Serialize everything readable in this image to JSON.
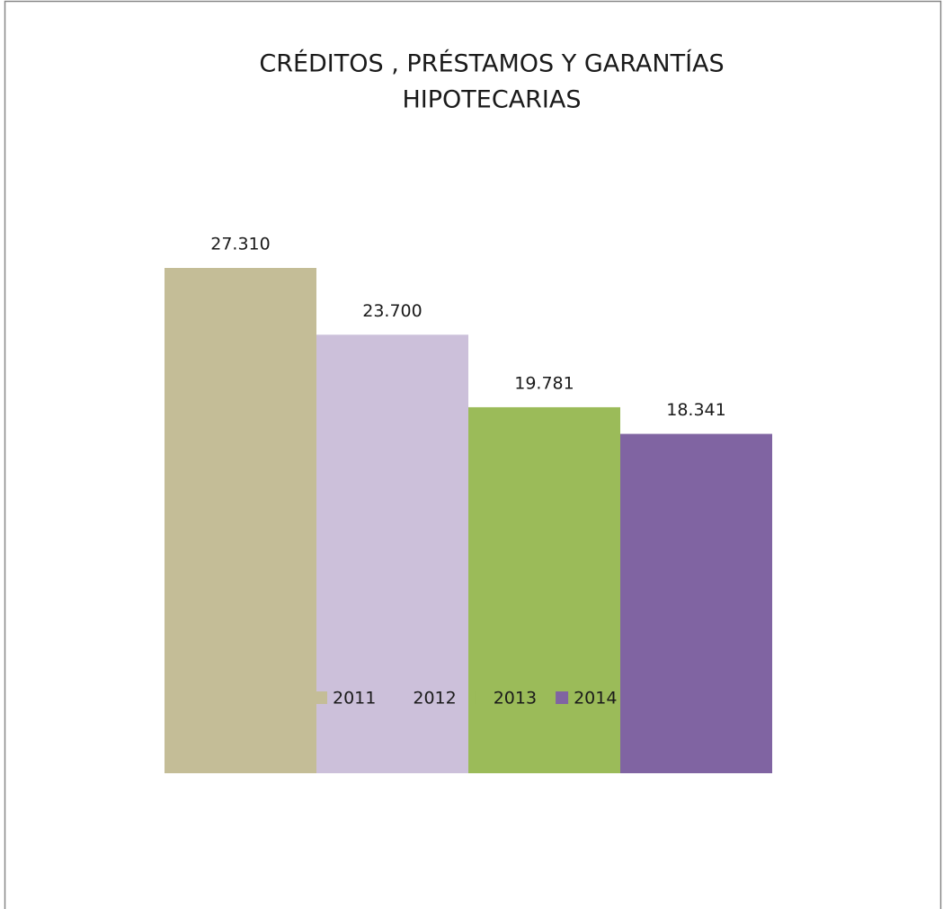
{
  "chart_data": {
    "type": "bar",
    "title": [
      "CRÉDITOS , PRÉSTAMOS Y GARANTÍAS",
      "HIPOTECARIAS"
    ],
    "series": [
      {
        "name": "2011",
        "color": "#c4bd97",
        "values": [
          27310
        ],
        "value_labels": [
          "27.310"
        ]
      },
      {
        "name": "2012",
        "color": "#ccc0da",
        "values": [
          23700
        ],
        "value_labels": [
          "23.700"
        ]
      },
      {
        "name": "2013",
        "color": "#9bbb59",
        "values": [
          19781
        ],
        "value_labels": [
          "19.781"
        ]
      },
      {
        "name": "2014",
        "color": "#8064a2",
        "values": [
          18341
        ],
        "value_labels": [
          "18.341"
        ]
      }
    ],
    "legend": "bottom"
  }
}
